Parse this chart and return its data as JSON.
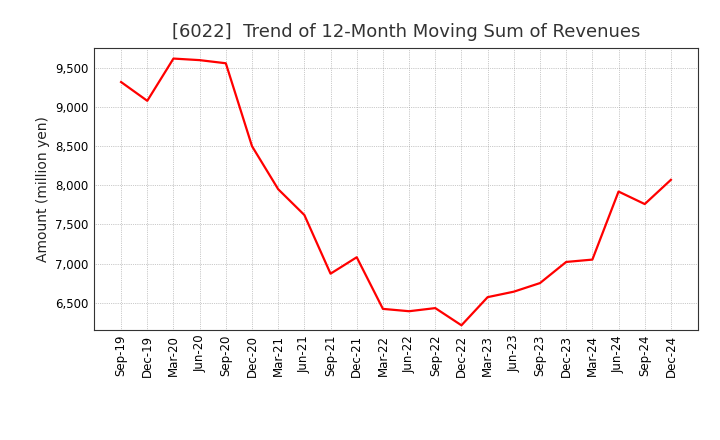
{
  "title": "[6022]  Trend of 12-Month Moving Sum of Revenues",
  "ylabel": "Amount (million yen)",
  "line_color": "#ff0000",
  "background_color": "#ffffff",
  "plot_bg_color": "#ffffff",
  "grid_color": "#999999",
  "title_fontsize": 13,
  "title_color": "#333333",
  "label_fontsize": 10,
  "tick_fontsize": 8.5,
  "ylim": [
    6150,
    9750
  ],
  "yticks": [
    6500,
    7000,
    7500,
    8000,
    8500,
    9000,
    9500
  ],
  "x_labels": [
    "Sep-19",
    "Dec-19",
    "Mar-20",
    "Jun-20",
    "Sep-20",
    "Dec-20",
    "Mar-21",
    "Jun-21",
    "Sep-21",
    "Dec-21",
    "Mar-22",
    "Jun-22",
    "Sep-22",
    "Dec-22",
    "Mar-23",
    "Jun-23",
    "Sep-23",
    "Dec-23",
    "Mar-24",
    "Jun-24",
    "Sep-24",
    "Dec-24"
  ],
  "values": [
    9320,
    9080,
    9620,
    9600,
    9560,
    8500,
    7950,
    7620,
    6870,
    7080,
    6420,
    6390,
    6430,
    6210,
    6570,
    6640,
    6750,
    7020,
    7050,
    7920,
    7760,
    8070
  ],
  "line_width": 1.6
}
